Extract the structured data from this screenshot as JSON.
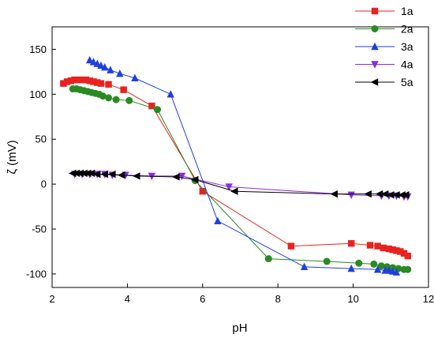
{
  "chart_data": {
    "type": "scatter",
    "xlabel": "pH",
    "ylabel": "ζ (mV)",
    "xlim": [
      2,
      12
    ],
    "ylim": [
      -115,
      175
    ],
    "xticks": [
      2,
      4,
      6,
      8,
      10,
      12
    ],
    "yticks": [
      -100,
      -50,
      0,
      50,
      100,
      150
    ],
    "grid": false,
    "legend_position": "top-right",
    "series": [
      {
        "name": "1a",
        "color": "#e8231f",
        "marker": "square",
        "x": [
          2.3,
          2.4,
          2.5,
          2.6,
          2.7,
          2.8,
          2.9,
          3.0,
          3.1,
          3.2,
          3.3,
          3.5,
          3.9,
          4.65,
          6.0,
          8.35,
          9.95,
          10.45,
          10.65,
          10.8,
          10.95,
          11.05,
          11.15,
          11.25,
          11.35,
          11.45
        ],
        "y": [
          112,
          114,
          115,
          116,
          116,
          116,
          116,
          115,
          114,
          113,
          112,
          111,
          105,
          87,
          -8,
          -69,
          -66,
          -68,
          -69,
          -71,
          -72,
          -73,
          -74,
          -75,
          -77,
          -80
        ]
      },
      {
        "name": "2a",
        "color": "#2a8a22",
        "marker": "circle",
        "x": [
          2.55,
          2.65,
          2.75,
          2.85,
          2.95,
          3.05,
          3.15,
          3.25,
          3.35,
          3.5,
          3.7,
          4.05,
          4.8,
          5.8,
          7.75,
          9.3,
          10.15,
          10.55,
          10.75,
          10.9,
          11.05,
          11.2,
          11.35,
          11.45
        ],
        "y": [
          106,
          106,
          105,
          104,
          103,
          102,
          101,
          100,
          98,
          96,
          94,
          93,
          83,
          4,
          -83,
          -86,
          -88,
          -89,
          -91,
          -92,
          -93,
          -94,
          -95,
          -95
        ]
      },
      {
        "name": "3a",
        "color": "#1f3fe0",
        "marker": "triangle-up",
        "x": [
          3.0,
          3.1,
          3.2,
          3.3,
          3.4,
          3.55,
          3.8,
          4.2,
          5.15,
          6.4,
          8.7,
          9.95,
          10.65,
          10.85,
          10.95,
          11.05,
          11.15
        ],
        "y": [
          138,
          136,
          134,
          132,
          130,
          127,
          123,
          118,
          100,
          -41,
          -92,
          -94,
          -95,
          -96,
          -96,
          -97,
          -98
        ]
      },
      {
        "name": "4a",
        "color": "#8a2be2",
        "marker": "triangle-down",
        "x": [
          2.6,
          2.8,
          3.0,
          3.2,
          3.4,
          3.6,
          3.95,
          4.65,
          5.45,
          6.7,
          9.95,
          10.75,
          10.95,
          11.15,
          11.35,
          11.45
        ],
        "y": [
          11,
          11,
          11,
          11,
          11,
          10,
          10,
          9,
          9,
          -3,
          -12,
          -13,
          -13,
          -13,
          -14,
          -14
        ]
      },
      {
        "name": "5a",
        "color": "#000000",
        "marker": "triangle-left",
        "x": [
          2.55,
          2.65,
          2.75,
          2.85,
          2.95,
          3.05,
          3.2,
          3.4,
          3.6,
          3.85,
          4.25,
          5.3,
          5.8,
          6.85,
          9.5,
          10.4,
          10.7,
          10.85,
          11.0,
          11.15,
          11.3,
          11.4
        ],
        "y": [
          12,
          12,
          12,
          12,
          12,
          12,
          11,
          11,
          11,
          10,
          9,
          8,
          5,
          -8,
          -11,
          -11,
          -11,
          -11,
          -12,
          -12,
          -12,
          -12
        ]
      }
    ]
  }
}
